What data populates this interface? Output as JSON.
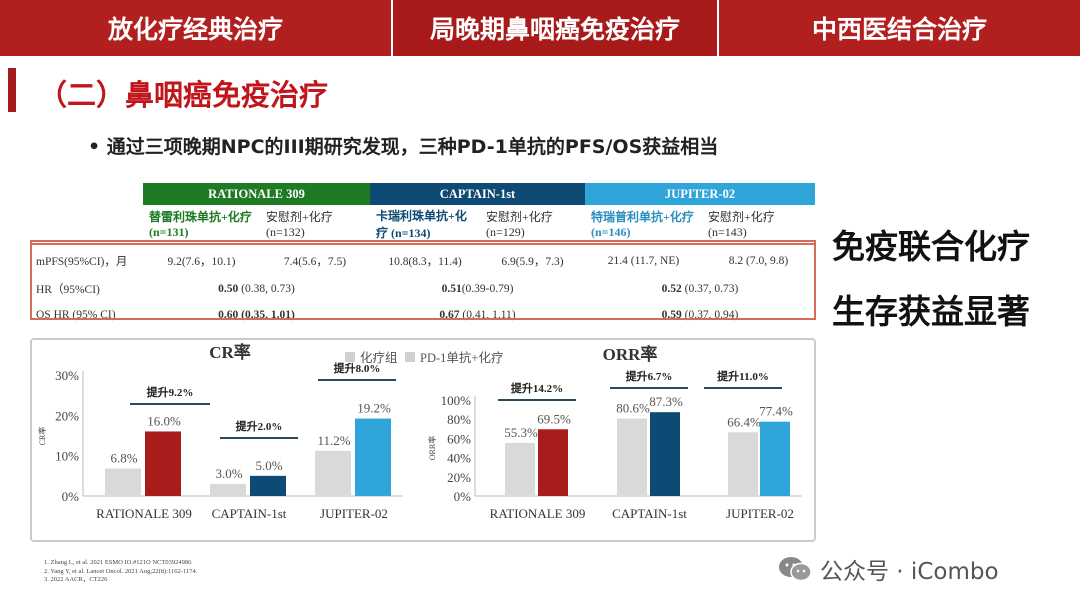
{
  "topbar": {
    "tabs": [
      {
        "label": "放化疗经典治疗"
      },
      {
        "label": "局晚期鼻咽癌免疫治疗"
      },
      {
        "label": "中西医结合治疗"
      }
    ]
  },
  "title": "（二）鼻咽癌免疫治疗",
  "bullet": "• 通过三项晚期NPC的III期研究发现，三种PD-1单抗的PFS/OS获益相当",
  "table": {
    "trials": [
      {
        "name": "RATIONALE 309",
        "color": "#1e7a23"
      },
      {
        "name": "CAPTAIN-1st",
        "color": "#0e4a73"
      },
      {
        "name": "JUPITER-02",
        "color": "#2fa5da"
      }
    ],
    "arms": [
      "替雷利珠单抗+化疗 (n=131)",
      "安慰剂+化疗 (n=132)",
      "卡瑞利珠单抗+化疗 (n=134)",
      "安慰剂+化疗 (n=129)",
      "特瑞普利单抗+化疗 (n=146)",
      "安慰剂+化疗 (n=143)"
    ],
    "mpfs_label": "mPFS(95%CI)，月",
    "mpfs": [
      "9.2(7.6，10.1)",
      "7.4(5.6，7.5)",
      "10.8(8.3，11.4)",
      "6.9(5.9，7.3)",
      "21.4 (11.7, NE)",
      "8.2 (7.0, 9.8)"
    ],
    "hr_label": "HR（95%CI)",
    "hr": [
      {
        "b": "0.50",
        "r": " (0.38, 0.73)"
      },
      {
        "b": "0.51",
        "r": "(0.39-0.79)"
      },
      {
        "b": "0.52",
        "r": " (0.37, 0.73)"
      }
    ],
    "os_label": "OS HR (95% CI)",
    "os": [
      {
        "b": "0.60 (0.35, 1.01)",
        "r": ""
      },
      {
        "b": "0.67",
        "r": " (0.41, 1.11)"
      },
      {
        "b": "0.59",
        "r": " (0.37, 0.94)"
      }
    ]
  },
  "right": [
    "免疫联合化疗",
    "生存获益显著"
  ],
  "chart_data": [
    {
      "type": "bar",
      "title": "CR率",
      "ylabel": "CR率",
      "ylim": [
        0,
        30
      ],
      "yticks": [
        "0%",
        "10%",
        "20%",
        "30%"
      ],
      "categories": [
        "RATIONALE 309",
        "CAPTAIN-1st",
        "JUPITER-02"
      ],
      "series": [
        {
          "name": "化疗组",
          "values": [
            6.8,
            3.0,
            11.2
          ],
          "colors": [
            "#d9d9d9",
            "#d9d9d9",
            "#d9d9d9"
          ]
        },
        {
          "name": "PD-1单抗+化疗",
          "values": [
            16.0,
            5.0,
            19.2
          ],
          "colors": [
            "#a81c1c",
            "#0e4a73",
            "#2fa5da"
          ]
        }
      ],
      "labels": [
        [
          "6.8%",
          "3.0%",
          "11.2%"
        ],
        [
          "16.0%",
          "5.0%",
          "19.2%"
        ]
      ],
      "annotations": [
        "提升9.2%",
        "提升2.0%",
        "提升8.0%"
      ]
    },
    {
      "type": "bar",
      "title": "ORR率",
      "ylabel": "ORR率",
      "ylim": [
        0,
        100
      ],
      "yticks": [
        "0%",
        "20%",
        "40%",
        "60%",
        "80%",
        "100%"
      ],
      "categories": [
        "RATIONALE 309",
        "CAPTAIN-1st",
        "JUPITER-02"
      ],
      "series": [
        {
          "name": "化疗组",
          "values": [
            55.3,
            80.6,
            66.4
          ],
          "colors": [
            "#d9d9d9",
            "#d9d9d9",
            "#d9d9d9"
          ]
        },
        {
          "name": "PD-1单抗+化疗",
          "values": [
            69.5,
            87.3,
            77.4
          ],
          "colors": [
            "#a81c1c",
            "#0e4a73",
            "#2fa5da"
          ]
        }
      ],
      "labels": [
        [
          "55.3%",
          "80.6%",
          "66.4%"
        ],
        [
          "69.5%",
          "87.3%",
          "77.4%"
        ]
      ],
      "annotations": [
        "提升14.2%",
        "提升6.7%",
        "提升11.0%"
      ]
    }
  ],
  "legend": [
    "化疗组",
    "PD-1单抗+化疗"
  ],
  "footnotes": [
    "1.  Zhang L, et al. 2021 ESMO IO.#121O  NCT03924986",
    "2.  Yang Y, et al.  Lancet Oncol. 2021 Aug;22(8):1162-1174.",
    "3.  2022 AACR，CT226"
  ],
  "watermark": "公众号 · iCombo"
}
